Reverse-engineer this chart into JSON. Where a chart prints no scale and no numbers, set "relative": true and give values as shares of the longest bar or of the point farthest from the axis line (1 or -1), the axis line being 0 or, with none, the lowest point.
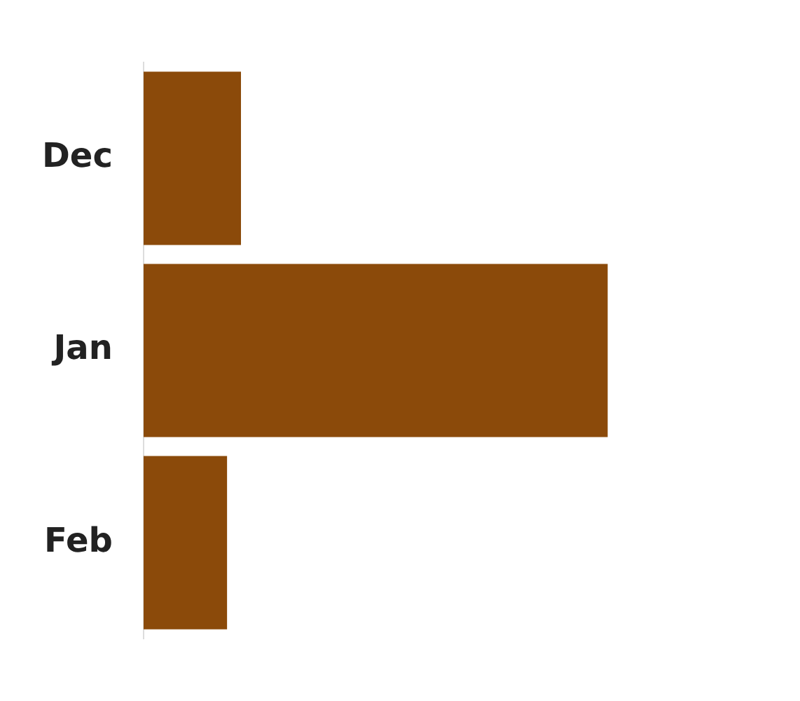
{
  "chart_data": {
    "type": "bar",
    "orientation": "horizontal",
    "relative": true,
    "categories": [
      "Dec",
      "Jan",
      "Feb"
    ],
    "values": [
      0.21,
      1,
      0.18
    ],
    "color": "#8b4a0a"
  }
}
